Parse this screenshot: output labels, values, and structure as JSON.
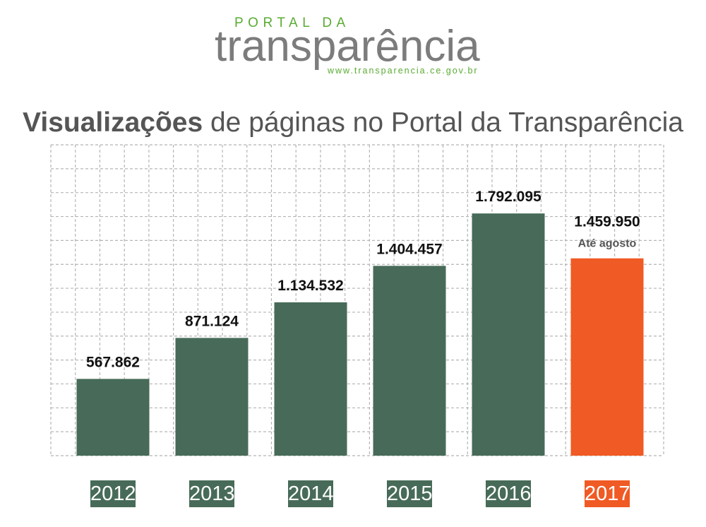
{
  "logo": {
    "top": "PORTAL DA",
    "main": "transparência",
    "url": "www.transparencia.ce.gov.br"
  },
  "title": {
    "bold": "Visualizações",
    "rest": " de páginas no Portal da Transparência"
  },
  "colors": {
    "bar": "#476b58",
    "highlight": "#f05a24",
    "grid": "#b5b5b5"
  },
  "chart_data": {
    "type": "bar",
    "categories": [
      "2012",
      "2013",
      "2014",
      "2015",
      "2016",
      "2017"
    ],
    "values": [
      567862,
      871124,
      1134532,
      1404457,
      1792095,
      1459950
    ],
    "value_labels": [
      "567.862",
      "871.124",
      "1.134.532",
      "1.404.457",
      "1.792.095",
      "1.459.950"
    ],
    "annotations": [
      {
        "category": "2017",
        "text": "Até agosto"
      }
    ],
    "highlight_category": "2017",
    "title": "Visualizações de páginas no Portal da Transparência",
    "xlabel": "",
    "ylabel": "",
    "ylim": [
      0,
      2300000
    ],
    "grid": true
  }
}
